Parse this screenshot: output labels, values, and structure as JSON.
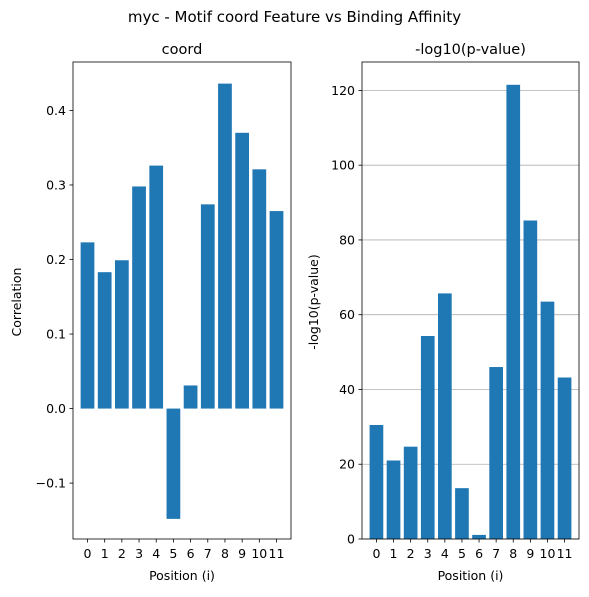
{
  "figure": {
    "suptitle": "myc - Motif coord Feature vs Binding Affinity"
  },
  "chart_data": [
    {
      "type": "bar",
      "title": "coord",
      "xlabel": "Position (i)",
      "ylabel": "Correlation",
      "categories": [
        "0",
        "1",
        "2",
        "3",
        "4",
        "5",
        "6",
        "7",
        "8",
        "9",
        "10",
        "11"
      ],
      "values": [
        0.223,
        0.183,
        0.199,
        0.298,
        0.326,
        -0.148,
        0.031,
        0.274,
        0.436,
        0.37,
        0.321,
        0.265
      ],
      "ylim": [
        -0.175,
        0.465
      ],
      "yticks": [
        -0.1,
        0.0,
        0.1,
        0.2,
        0.3,
        0.4
      ],
      "ytick_labels": [
        "−0.1",
        "0.0",
        "0.1",
        "0.2",
        "0.3",
        "0.4"
      ],
      "grid": false,
      "color": "#1f77b4"
    },
    {
      "type": "bar",
      "title": "-log10(p-value)",
      "xlabel": "Position (i)",
      "ylabel": "-log10(p-value)",
      "categories": [
        "0",
        "1",
        "2",
        "3",
        "4",
        "5",
        "6",
        "7",
        "8",
        "9",
        "10",
        "11"
      ],
      "values": [
        30.5,
        21.0,
        24.7,
        54.3,
        65.7,
        13.6,
        1.1,
        46.0,
        121.5,
        85.2,
        63.5,
        43.2
      ],
      "ylim": [
        0,
        127.6
      ],
      "yticks": [
        0,
        20,
        40,
        60,
        80,
        100,
        120
      ],
      "ytick_labels": [
        "0",
        "20",
        "40",
        "60",
        "80",
        "100",
        "120"
      ],
      "grid": true,
      "grid_axis": "y",
      "color": "#1f77b4"
    }
  ]
}
